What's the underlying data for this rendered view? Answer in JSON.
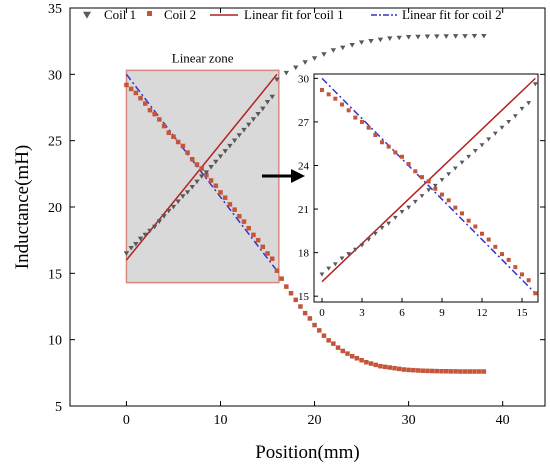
{
  "chart_data": {
    "type": "scatter",
    "xlabel": "Position(mm)",
    "ylabel": "Inductance(mH)",
    "xlim": [
      -6,
      44.5
    ],
    "ylim": [
      5,
      35
    ],
    "x_ticks": [
      0,
      10,
      20,
      30,
      40
    ],
    "y_ticks": [
      5,
      10,
      15,
      20,
      25,
      30,
      35
    ],
    "legend": {
      "placement": "top",
      "entries": [
        "Coil 1",
        "Coil 2",
        "Linear fit for coil 1",
        "Linear fit for coil 2"
      ]
    },
    "annotation": "Linear zone",
    "linear_zone": {
      "x": [
        0,
        16.2
      ],
      "y": [
        14.3,
        30.3
      ]
    },
    "colors": {
      "coil1": "#595959",
      "coil2": "#c4553a",
      "fit1": "#b22222",
      "fit2": "#3333cc",
      "zone_fill": "#d9d9d9",
      "zone_border": "#d98a80"
    },
    "series": [
      {
        "name": "Coil 1",
        "marker": "triangle-down",
        "x": [
          0,
          0.5,
          1,
          1.5,
          2,
          2.5,
          3,
          3.5,
          4,
          4.5,
          5,
          5.5,
          6,
          6.5,
          7,
          7.5,
          8,
          8.5,
          9,
          9.5,
          10,
          10.5,
          11,
          11.5,
          12,
          12.5,
          13,
          13.5,
          14,
          14.5,
          15,
          15.5,
          16,
          17,
          18,
          19,
          20,
          21,
          22,
          23,
          24,
          25,
          26,
          27,
          28,
          29,
          30,
          31,
          32,
          33,
          34,
          35,
          36,
          37,
          38
        ],
        "y": [
          16.5,
          16.9,
          17.2,
          17.6,
          17.9,
          18.2,
          18.5,
          18.9,
          19.3,
          19.7,
          20.0,
          20.4,
          20.8,
          21.1,
          21.5,
          21.9,
          22.3,
          22.6,
          23.0,
          23.4,
          23.8,
          24.2,
          24.6,
          25.0,
          25.4,
          25.8,
          26.2,
          26.6,
          27.0,
          27.4,
          27.9,
          28.3,
          29.6,
          30.1,
          30.5,
          30.9,
          31.2,
          31.5,
          31.8,
          32.0,
          32.2,
          32.4,
          32.5,
          32.6,
          32.7,
          32.75,
          32.8,
          32.82,
          32.84,
          32.85,
          32.86,
          32.87,
          32.87,
          32.88,
          32.88
        ]
      },
      {
        "name": "Coil 2",
        "marker": "square",
        "x": [
          0,
          0.5,
          1,
          1.5,
          2,
          2.5,
          3,
          3.5,
          4,
          4.5,
          5,
          5.5,
          6,
          6.5,
          7,
          7.5,
          8,
          8.5,
          9,
          9.5,
          10,
          10.5,
          11,
          11.5,
          12,
          12.5,
          13,
          13.5,
          14,
          14.5,
          15,
          15.5,
          16,
          16.5,
          17,
          17.5,
          18,
          18.5,
          19,
          19.5,
          20,
          20.5,
          21,
          21.5,
          22,
          22.5,
          23,
          23.5,
          24,
          24.5,
          25,
          25.5,
          26,
          26.5,
          27,
          27.5,
          28,
          28.5,
          29,
          29.5,
          30,
          30.5,
          31,
          31.5,
          32,
          32.5,
          33,
          33.5,
          34,
          34.5,
          35,
          35.5,
          36,
          36.5,
          37,
          37.5,
          38
        ],
        "y": [
          29.2,
          28.9,
          28.6,
          28.2,
          27.8,
          27.3,
          27.0,
          26.6,
          26.1,
          25.6,
          25.3,
          24.9,
          24.6,
          24.1,
          23.6,
          23.2,
          22.9,
          22.4,
          22.0,
          21.6,
          21.1,
          20.7,
          20.2,
          19.8,
          19.3,
          18.9,
          18.4,
          17.9,
          17.5,
          17.0,
          16.5,
          16.1,
          15.2,
          14.6,
          14.0,
          13.5,
          13.0,
          12.5,
          12.0,
          11.6,
          11.1,
          10.7,
          10.3,
          9.95,
          9.7,
          9.4,
          9.15,
          8.95,
          8.75,
          8.6,
          8.45,
          8.3,
          8.2,
          8.1,
          8.0,
          7.95,
          7.9,
          7.85,
          7.8,
          7.75,
          7.72,
          7.7,
          7.68,
          7.66,
          7.65,
          7.64,
          7.63,
          7.62,
          7.62,
          7.61,
          7.61,
          7.6,
          7.6,
          7.6,
          7.6,
          7.6,
          7.6
        ]
      },
      {
        "name": "Linear fit for coil 1",
        "type": "line",
        "style": "solid",
        "x": [
          0,
          16
        ],
        "y": [
          16.0,
          30.0
        ]
      },
      {
        "name": "Linear fit for coil 2",
        "type": "line",
        "style": "dash-dot",
        "x": [
          0,
          16
        ],
        "y": [
          30.0,
          15.2
        ]
      }
    ],
    "inset": {
      "xlim": [
        -0.6,
        16.2
      ],
      "ylim": [
        14.6,
        30.3
      ],
      "x_ticks": [
        0,
        3,
        6,
        9,
        12,
        15
      ],
      "y_ticks": [
        15,
        18,
        21,
        24,
        27,
        30
      ]
    }
  }
}
